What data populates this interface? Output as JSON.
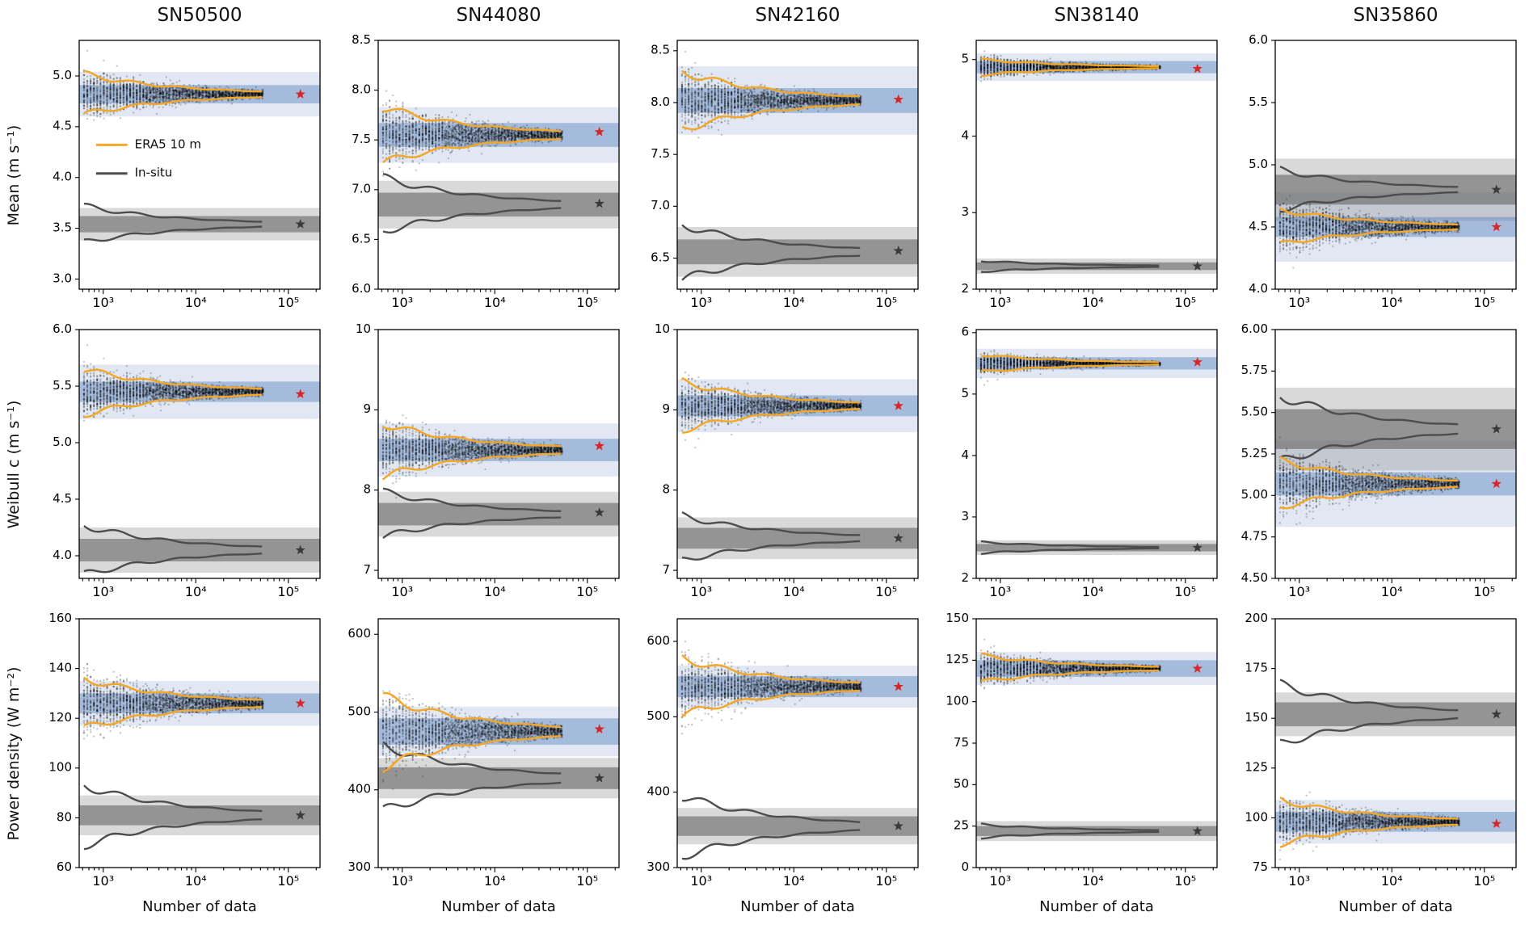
{
  "figure": {
    "xlabel": "Number of data",
    "x_ticks": {
      "vals": [
        1000,
        10000,
        100000
      ],
      "labels": [
        "10³",
        "10⁴",
        "10⁵"
      ]
    },
    "xlim": [
      550,
      220000
    ],
    "scatter_x_range": [
      620,
      52000
    ],
    "star_x": 135000,
    "legend": [
      {
        "label": "ERA5 10 m",
        "color_key": "era5"
      },
      {
        "label": "In-situ",
        "color_key": "insitu"
      }
    ],
    "colors": {
      "era5": "#F5A623",
      "insitu": "#4D4D4D",
      "scatter": "rgba(0,0,0,0.22)",
      "band_blue_outer": "rgba(68,114,182,0.16)",
      "band_blue_inner": "rgba(68,114,182,0.38)",
      "band_gray_outer": "rgba(130,130,130,0.30)",
      "band_gray_inner": "rgba(80,80,80,0.50)",
      "star_era5": "#D62728",
      "star_insitu": "#3A3A3A",
      "axis": "#000000"
    }
  },
  "chart_data": {
    "type": "scatter",
    "description": "Bootstrap convergence of wind statistics vs number of data (log x-axis). Black dots: ERA5 subsample estimates; orange envelope: ERA5 10 m spread; gray envelope: in-situ spread; shaded bands: converged uncertainty bands; stars: full-record values.",
    "columns": [
      "SN50500",
      "SN44080",
      "SN42160",
      "SN38140",
      "SN35860"
    ],
    "rows": [
      {
        "ylabel": "Mean (m s⁻¹)"
      },
      {
        "ylabel": "Weibull c (m s⁻¹)"
      },
      {
        "ylabel": "Power density (W m⁻²)"
      }
    ],
    "x_axis": {
      "label": "Number of data",
      "scale": "log"
    },
    "panels": [
      {
        "station": "SN50500",
        "row": "Mean",
        "ylim": [
          2.9,
          5.35
        ],
        "yticks": [
          3.0,
          3.5,
          4.0,
          4.5,
          5.0
        ],
        "ytick_labels": [
          "3.0",
          "3.5",
          "4.0",
          "4.5",
          "5.0"
        ],
        "era5": {
          "converged": 4.82,
          "env_spread": 0.2,
          "scatter_spread": 0.32,
          "band_inner": 0.09,
          "band_outer": 0.22,
          "star": 4.82
        },
        "insitu": {
          "converged": 3.54,
          "env_spread": 0.18,
          "band_inner": 0.08,
          "band_outer": 0.16,
          "star": 3.54
        },
        "show_legend": true
      },
      {
        "station": "SN44080",
        "row": "Mean",
        "ylim": [
          6.0,
          8.5
        ],
        "yticks": [
          6.0,
          6.5,
          7.0,
          7.5,
          8.0,
          8.5
        ],
        "ytick_labels": [
          "6.0",
          "6.5",
          "7.0",
          "7.5",
          "8.0",
          "8.5"
        ],
        "era5": {
          "converged": 7.55,
          "env_spread": 0.28,
          "scatter_spread": 0.42,
          "band_inner": 0.12,
          "band_outer": 0.28,
          "star": 7.58
        },
        "insitu": {
          "converged": 6.85,
          "env_spread": 0.27,
          "band_inner": 0.12,
          "band_outer": 0.24,
          "star": 6.86
        },
        "show_legend": false
      },
      {
        "station": "SN42160",
        "row": "Mean",
        "ylim": [
          6.2,
          8.6
        ],
        "yticks": [
          6.5,
          7.0,
          7.5,
          8.0,
          8.5
        ],
        "ytick_labels": [
          "6.5",
          "7.0",
          "7.5",
          "8.0",
          "8.5"
        ],
        "era5": {
          "converged": 8.02,
          "env_spread": 0.28,
          "scatter_spread": 0.38,
          "band_inner": 0.12,
          "band_outer": 0.33,
          "star": 8.03
        },
        "insitu": {
          "converged": 6.56,
          "env_spread": 0.26,
          "band_inner": 0.12,
          "band_outer": 0.24,
          "star": 6.57
        },
        "show_legend": false
      },
      {
        "station": "SN38140",
        "row": "Mean",
        "ylim": [
          2.0,
          5.25
        ],
        "yticks": [
          2,
          3,
          4,
          5
        ],
        "ytick_labels": [
          "2",
          "3",
          "4",
          "5"
        ],
        "era5": {
          "converged": 4.9,
          "env_spread": 0.1,
          "scatter_spread": 0.19,
          "band_inner": 0.08,
          "band_outer": 0.18,
          "star": 4.88
        },
        "insitu": {
          "converged": 2.3,
          "env_spread": 0.07,
          "band_inner": 0.05,
          "band_outer": 0.1,
          "star": 2.3
        },
        "show_legend": false
      },
      {
        "station": "SN35860",
        "row": "Mean",
        "ylim": [
          4.0,
          6.0
        ],
        "yticks": [
          4.0,
          4.5,
          5.0,
          5.5,
          6.0
        ],
        "ytick_labels": [
          "4.0",
          "4.5",
          "5.0",
          "5.5",
          "6.0"
        ],
        "era5": {
          "converged": 4.5,
          "env_spread": 0.14,
          "scatter_spread": 0.29,
          "band_inner": 0.08,
          "band_outer": 0.28,
          "star": 4.5
        },
        "insitu": {
          "converged": 4.8,
          "env_spread": 0.16,
          "band_inner": 0.12,
          "band_outer": 0.25,
          "star": 4.8
        },
        "show_legend": false
      },
      {
        "station": "SN50500",
        "row": "Weibull c",
        "ylim": [
          3.8,
          6.0
        ],
        "yticks": [
          4.0,
          4.5,
          5.0,
          5.5,
          6.0
        ],
        "ytick_labels": [
          "4.0",
          "4.5",
          "5.0",
          "5.5",
          "6.0"
        ],
        "era5": {
          "converged": 5.45,
          "env_spread": 0.2,
          "scatter_spread": 0.3,
          "band_inner": 0.09,
          "band_outer": 0.24,
          "star": 5.43
        },
        "insitu": {
          "converged": 4.05,
          "env_spread": 0.22,
          "band_inner": 0.1,
          "band_outer": 0.2,
          "star": 4.05
        },
        "show_legend": false
      },
      {
        "station": "SN44080",
        "row": "Weibull c",
        "ylim": [
          6.9,
          10.0
        ],
        "yticks": [
          7,
          8,
          9,
          10
        ],
        "ytick_labels": [
          "7",
          "8",
          "9",
          "10"
        ],
        "era5": {
          "converged": 8.5,
          "env_spread": 0.33,
          "scatter_spread": 0.48,
          "band_inner": 0.14,
          "band_outer": 0.33,
          "star": 8.55
        },
        "insitu": {
          "converged": 7.7,
          "env_spread": 0.28,
          "band_inner": 0.14,
          "band_outer": 0.28,
          "star": 7.72
        },
        "show_legend": false
      },
      {
        "station": "SN42160",
        "row": "Weibull c",
        "ylim": [
          6.9,
          10.0
        ],
        "yticks": [
          7,
          8,
          9,
          10
        ],
        "ytick_labels": [
          "7",
          "8",
          "9",
          "10"
        ],
        "era5": {
          "converged": 9.05,
          "env_spread": 0.3,
          "scatter_spread": 0.44,
          "band_inner": 0.13,
          "band_outer": 0.33,
          "star": 9.05
        },
        "insitu": {
          "converged": 7.4,
          "env_spread": 0.28,
          "band_inner": 0.13,
          "band_outer": 0.26,
          "star": 7.4
        },
        "show_legend": false
      },
      {
        "station": "SN38140",
        "row": "Weibull c",
        "ylim": [
          2.0,
          6.05
        ],
        "yticks": [
          2,
          3,
          4,
          5,
          6
        ],
        "ytick_labels": [
          "2",
          "3",
          "4",
          "5",
          "6"
        ],
        "era5": {
          "converged": 5.5,
          "env_spread": 0.14,
          "scatter_spread": 0.24,
          "band_inner": 0.1,
          "band_outer": 0.24,
          "star": 5.52
        },
        "insitu": {
          "converged": 2.5,
          "env_spread": 0.09,
          "band_inner": 0.06,
          "band_outer": 0.12,
          "star": 2.5
        },
        "show_legend": false
      },
      {
        "station": "SN35860",
        "row": "Weibull c",
        "ylim": [
          4.5,
          6.0
        ],
        "yticks": [
          4.5,
          4.75,
          5.0,
          5.25,
          5.5,
          5.75,
          6.0
        ],
        "ytick_labels": [
          "4.50",
          "4.75",
          "5.00",
          "5.25",
          "5.50",
          "5.75",
          "6.00"
        ],
        "era5": {
          "converged": 5.07,
          "env_spread": 0.14,
          "scatter_spread": 0.26,
          "band_inner": 0.07,
          "band_outer": 0.26,
          "star": 5.07
        },
        "insitu": {
          "converged": 5.4,
          "env_spread": 0.2,
          "band_inner": 0.12,
          "band_outer": 0.25,
          "star": 5.4
        },
        "show_legend": false
      },
      {
        "station": "SN50500",
        "row": "Power density",
        "ylim": [
          60,
          160
        ],
        "yticks": [
          60,
          80,
          100,
          120,
          140,
          160
        ],
        "ytick_labels": [
          "60",
          "80",
          "100",
          "120",
          "140",
          "160"
        ],
        "era5": {
          "converged": 126,
          "env_spread": 10,
          "scatter_spread": 17,
          "band_inner": 4,
          "band_outer": 9,
          "star": 126
        },
        "insitu": {
          "converged": 81,
          "env_spread": 12,
          "band_inner": 4,
          "band_outer": 8,
          "star": 81
        },
        "show_legend": false
      },
      {
        "station": "SN44080",
        "row": "Power density",
        "ylim": [
          300,
          620
        ],
        "yticks": [
          300,
          400,
          500,
          600
        ],
        "ytick_labels": [
          "300",
          "400",
          "500",
          "600"
        ],
        "era5": {
          "converged": 475,
          "env_spread": 45,
          "scatter_spread": 68,
          "band_inner": 17,
          "band_outer": 32,
          "star": 478
        },
        "insitu": {
          "converged": 415,
          "env_spread": 42,
          "band_inner": 14,
          "band_outer": 26,
          "star": 415
        },
        "show_legend": false
      },
      {
        "station": "SN42160",
        "row": "Power density",
        "ylim": [
          300,
          630
        ],
        "yticks": [
          300,
          400,
          500,
          600
        ],
        "ytick_labels": [
          "300",
          "400",
          "500",
          "600"
        ],
        "era5": {
          "converged": 540,
          "env_spread": 38,
          "scatter_spread": 56,
          "band_inner": 14,
          "band_outer": 28,
          "star": 540
        },
        "insitu": {
          "converged": 355,
          "env_spread": 40,
          "band_inner": 13,
          "band_outer": 24,
          "star": 355
        },
        "show_legend": false
      },
      {
        "station": "SN38140",
        "row": "Power density",
        "ylim": [
          0,
          150
        ],
        "yticks": [
          0,
          25,
          50,
          75,
          100,
          125,
          150
        ],
        "ytick_labels": [
          "0",
          "25",
          "50",
          "75",
          "100",
          "125",
          "150"
        ],
        "era5": {
          "converged": 120,
          "env_spread": 8,
          "scatter_spread": 14,
          "band_inner": 5,
          "band_outer": 10,
          "star": 120
        },
        "insitu": {
          "converged": 22,
          "env_spread": 4,
          "band_inner": 3,
          "band_outer": 6,
          "star": 22
        },
        "show_legend": false
      },
      {
        "station": "SN35860",
        "row": "Power density",
        "ylim": [
          75,
          200
        ],
        "yticks": [
          75,
          100,
          125,
          150,
          175,
          200
        ],
        "ytick_labels": [
          "75",
          "100",
          "125",
          "150",
          "175",
          "200"
        ],
        "era5": {
          "converged": 98,
          "env_spread": 11,
          "scatter_spread": 17,
          "band_inner": 5,
          "band_outer": 11,
          "star": 97
        },
        "insitu": {
          "converged": 152,
          "env_spread": 15,
          "band_inner": 6,
          "band_outer": 11,
          "star": 152
        },
        "show_legend": false
      }
    ]
  }
}
